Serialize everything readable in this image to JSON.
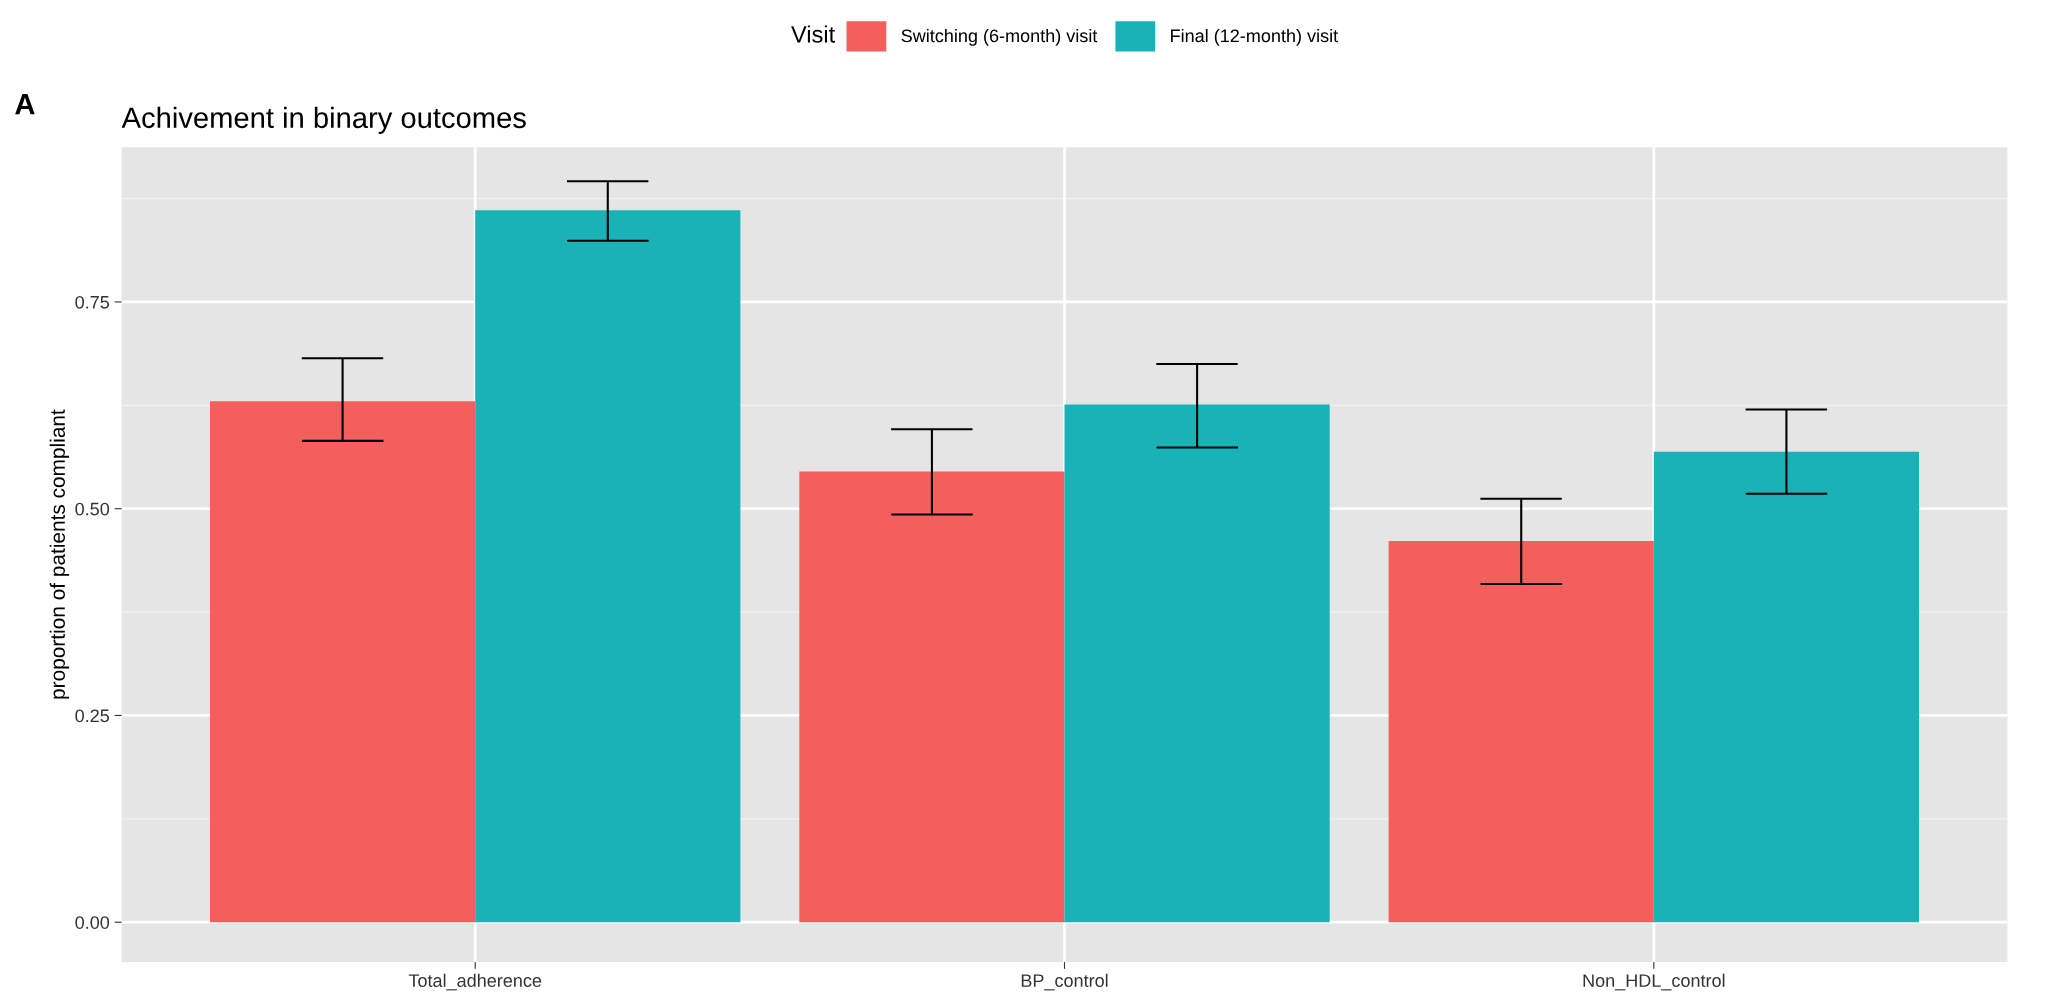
{
  "chart_data": {
    "type": "bar",
    "title": "Achivement in binary outcomes",
    "ylabel": "proportion of patients compliant",
    "legend_title": "Visit",
    "annotations": [
      "A"
    ],
    "categories": [
      "Total_adherence",
      "BP_control",
      "Non_HDL_control"
    ],
    "series": [
      {
        "name": "Switching (6-month) visit",
        "color": "#f25f5c",
        "values": [
          0.63,
          0.545,
          0.461
        ],
        "errors": [
          [
            0.582,
            0.682
          ],
          [
            0.493,
            0.596
          ],
          [
            0.409,
            0.512
          ]
        ]
      },
      {
        "name": "Final (12-month) visit",
        "color": "#19b2b6",
        "values": [
          0.861,
          0.626,
          0.569
        ],
        "errors": [
          [
            0.824,
            0.896
          ],
          [
            0.574,
            0.675
          ],
          [
            0.518,
            0.62
          ]
        ]
      }
    ],
    "ylim": [
      -0.048,
      0.937
    ],
    "yticks": [
      {
        "value": 0,
        "label": "0.00"
      },
      {
        "value": 0.25,
        "label": "0.25"
      },
      {
        "value": 0.5,
        "label": "0.50"
      },
      {
        "value": 0.75,
        "label": "0.75"
      }
    ],
    "grid": true,
    "legend": "top"
  }
}
